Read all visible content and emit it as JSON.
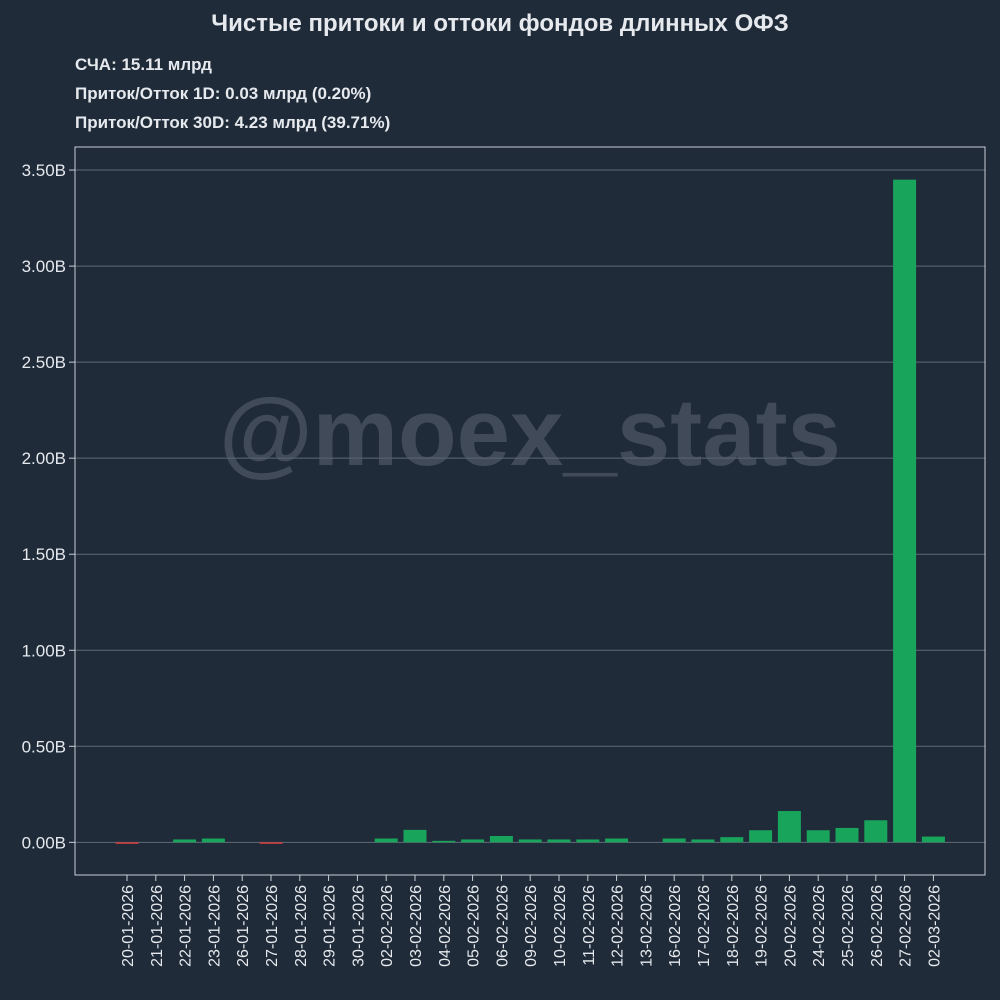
{
  "header": {
    "title": "Чистые притоки и оттоки фондов длинных ОФЗ",
    "stats": [
      "СЧА: 15.11 млрд",
      "Приток/Отток 1D: 0.03 млрд (0.20%)",
      "Приток/Отток 30D: 4.23 млрд (39.71%)"
    ]
  },
  "watermark": "@moex_stats",
  "colors": {
    "background": "#1f2b38",
    "positive": "#18a55b",
    "negative": "#d63b3b",
    "grid": "#5e6a77",
    "axis": "#c9ced6",
    "text": "#e6e9ee"
  },
  "chart_data": {
    "type": "bar",
    "title": "Чистые притоки и оттоки фондов длинных ОФЗ",
    "xlabel": "",
    "ylabel": "",
    "ylim": [
      -0.17,
      3.62
    ],
    "grid": true,
    "yticks": [
      0,
      0.5,
      1.0,
      1.5,
      2.0,
      2.5,
      3.0,
      3.5
    ],
    "ytick_labels": [
      "0.00B",
      "0.50B",
      "1.00B",
      "1.50B",
      "2.00B",
      "2.50B",
      "3.00B",
      "3.50B"
    ],
    "categories": [
      "20-01-2026",
      "21-01-2026",
      "22-01-2026",
      "23-01-2026",
      "26-01-2026",
      "27-01-2026",
      "28-01-2026",
      "29-01-2026",
      "30-01-2026",
      "02-02-2026",
      "03-02-2026",
      "04-02-2026",
      "05-02-2026",
      "06-02-2026",
      "09-02-2026",
      "10-02-2026",
      "11-02-2026",
      "12-02-2026",
      "13-02-2026",
      "16-02-2026",
      "17-02-2026",
      "18-02-2026",
      "19-02-2026",
      "20-02-2026",
      "24-02-2026",
      "25-02-2026",
      "26-02-2026",
      "27-02-2026",
      "02-03-2026"
    ],
    "values": [
      -0.005,
      0.0,
      0.015,
      0.02,
      0.0,
      -0.005,
      0.0,
      0.0,
      0.0,
      0.02,
      0.065,
      0.005,
      0.015,
      0.033,
      0.015,
      0.015,
      0.015,
      0.02,
      0.0,
      0.02,
      0.015,
      0.027,
      0.063,
      0.163,
      0.063,
      0.075,
      0.115,
      3.45,
      0.03
    ]
  }
}
